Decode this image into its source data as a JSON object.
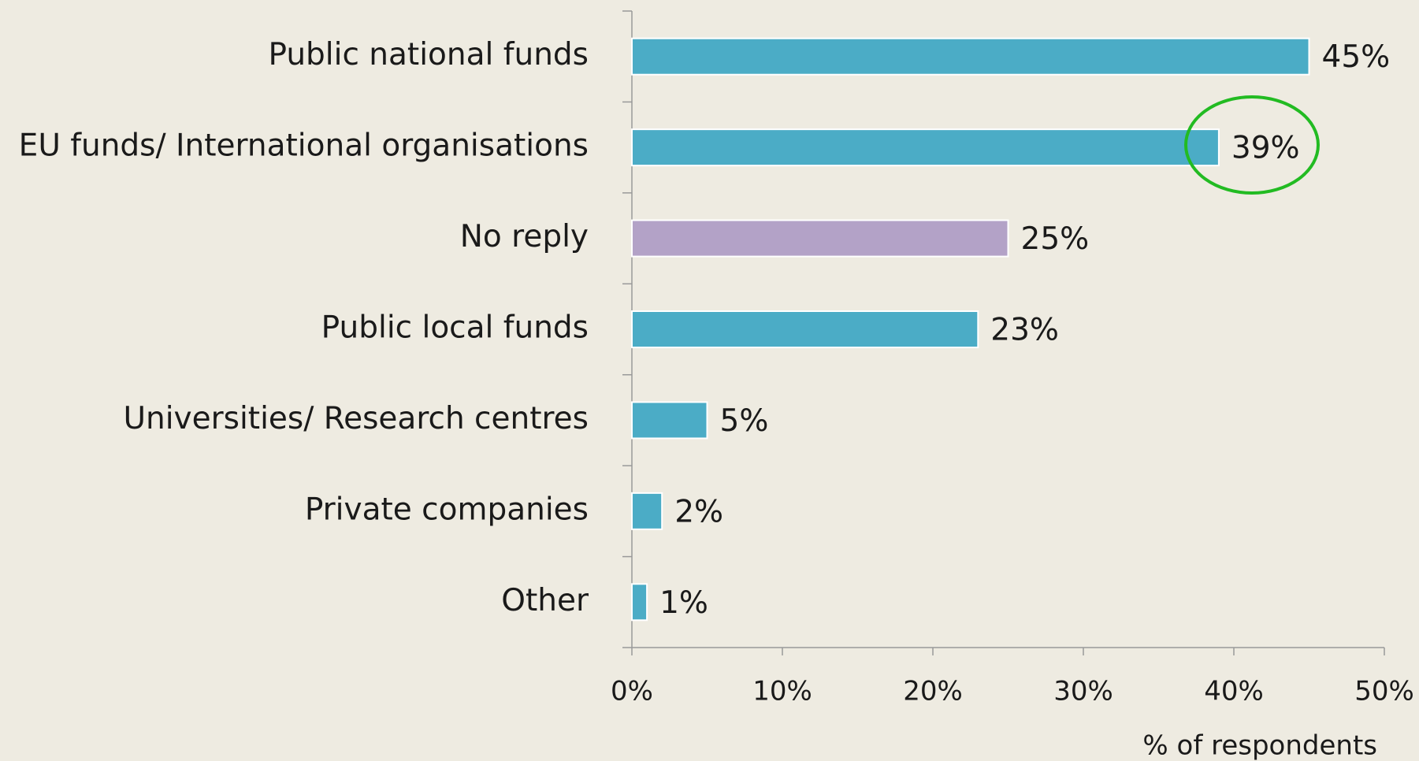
{
  "chart_data": {
    "type": "bar",
    "orientation": "horizontal",
    "categories": [
      "Public national funds",
      "EU funds/ International organisations",
      "No reply",
      "Public local funds",
      "Universities/ Research centres",
      "Private companies",
      "Other"
    ],
    "values": [
      45,
      39,
      25,
      23,
      5,
      2,
      1
    ],
    "value_labels": [
      "45%",
      "39%",
      "25%",
      "23%",
      "5%",
      "2%",
      "1%"
    ],
    "colors": [
      "#4bacc6",
      "#4bacc6",
      "#b3a2c7",
      "#4bacc6",
      "#4bacc6",
      "#4bacc6",
      "#4bacc6"
    ],
    "xlim": [
      0,
      50
    ],
    "xticks": [
      {
        "value": 0,
        "label": "0%"
      },
      {
        "value": 10,
        "label": "10%"
      },
      {
        "value": 20,
        "label": "20%"
      },
      {
        "value": 30,
        "label": "30%"
      },
      {
        "value": 40,
        "label": "40%"
      },
      {
        "value": 50,
        "label": "50%"
      }
    ],
    "xlabel": "% of respondents",
    "grid": false
  }
}
